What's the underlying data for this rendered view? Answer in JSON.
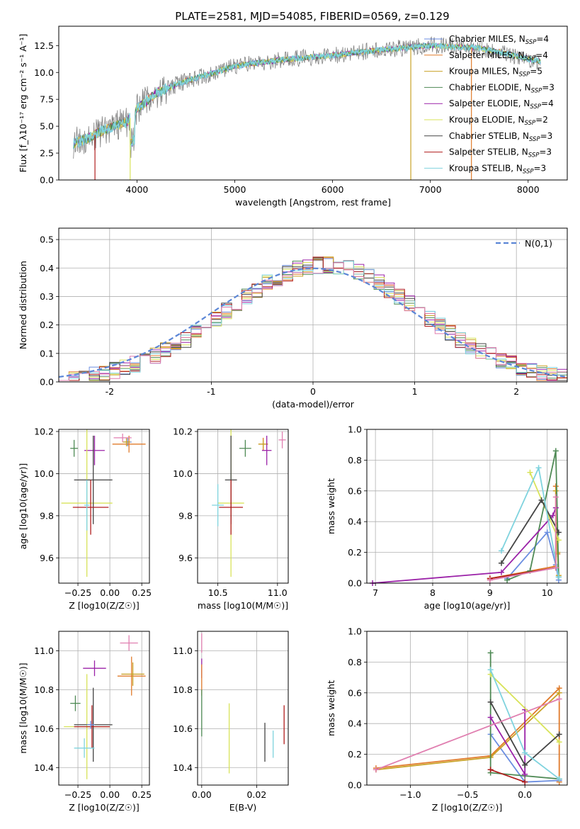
{
  "figure": {
    "title": "PLATE=2581, MJD=54085, FIBERID=0569, z=0.129"
  },
  "colors": {
    "Chabrier MILES": "#6b8ee0",
    "Salpeter MILES": "#e07b2b",
    "Kroupa MILES": "#c9a227",
    "Chabrier ELODIE": "#4f8a55",
    "Salpeter ELODIE": "#9b22a8",
    "Kroupa ELODIE": "#d8e35a",
    "Chabrier STELIB": "#444444",
    "Salpeter STELIB": "#b01c1c",
    "Kroupa STELIB": "#7fd3de",
    "extra_pink": "#e07fb0",
    "data": "#808080",
    "normal": "#5b86d6"
  },
  "chart_data": [
    {
      "id": "spectrum",
      "type": "line",
      "title": "PLATE=2581, MJD=54085, FIBERID=0569, z=0.129",
      "xlabel": "wavelength [Angstrom, rest frame]",
      "ylabel": "Flux [f_λ10⁻¹⁷ erg cm⁻² s⁻¹ A⁻¹]",
      "xlim": [
        3200,
        8400
      ],
      "ylim": [
        0,
        14.3
      ],
      "xticks": [
        4000,
        5000,
        6000,
        7000,
        8000
      ],
      "yticks": [
        0.0,
        2.5,
        5.0,
        7.5,
        10.0,
        12.5
      ],
      "legend": "top-right",
      "legend_entries": [
        "Chabrier MILES, N_SSP=4",
        "Salpeter MILES, N_SSP=4",
        "Kroupa MILES, N_SSP=5",
        "Chabrier ELODIE, N_SSP=3",
        "Salpeter ELODIE, N_SSP=4",
        "Kroupa ELODIE, N_SSP=2",
        "Chabrier STELIB, N_SSP=3",
        "Salpeter STELIB, N_SSP=3",
        "Kroupa STELIB, N_SSP=3"
      ],
      "continuum": {
        "x": [
          3350,
          3500,
          3700,
          3900,
          4000,
          4200,
          4500,
          4800,
          5000,
          5500,
          6000,
          6500,
          7000,
          7500,
          8130
        ],
        "y": [
          3.4,
          3.9,
          4.8,
          5.4,
          6.6,
          8.1,
          9.2,
          10.0,
          10.6,
          11.2,
          11.6,
          12.1,
          12.5,
          12.3,
          11.0
        ]
      },
      "grid": false
    },
    {
      "id": "residuals",
      "type": "histogram",
      "xlabel": "(data-model)/error",
      "ylabel": "Normed distribution",
      "xlim": [
        -2.5,
        2.5
      ],
      "ylim": [
        0,
        0.54
      ],
      "xticks": [
        -2,
        -1,
        0,
        1,
        2
      ],
      "yticks": [
        0.0,
        0.1,
        0.2,
        0.3,
        0.4,
        0.5
      ],
      "legend": "top-right",
      "normal_label": "N(0,1)",
      "bins": {
        "start": -2.5,
        "width": 0.1,
        "count": 50
      },
      "grid": true
    },
    {
      "id": "age_vs_Z",
      "type": "errorbar",
      "xlabel": "Z [log10(Z/Z☉)]",
      "ylabel": "age [log10(age/yr)]",
      "xlim": [
        -0.4,
        0.31
      ],
      "ylim": [
        9.48,
        10.21
      ],
      "xticks": [
        -0.25,
        0.0,
        0.25
      ],
      "xtick_labels": [
        "−0.25",
        "0.00",
        "0.25"
      ],
      "yticks": [
        9.6,
        9.8,
        10.0,
        10.2
      ],
      "ytick_labels": [
        "9.6",
        "9.8",
        "10.0",
        "10.2"
      ],
      "points": [
        {
          "c": "Chabrier MILES",
          "x": 0.14,
          "y": 10.15,
          "xe": 0.03,
          "ye": 0.02
        },
        {
          "c": "Salpeter MILES",
          "x": 0.15,
          "y": 10.14,
          "xe": 0.13,
          "ye": 0.04
        },
        {
          "c": "Kroupa MILES",
          "x": 0.13,
          "y": 10.15,
          "xe": 0.03,
          "ye": 0.02
        },
        {
          "c": "Chabrier ELODIE",
          "x": -0.28,
          "y": 10.12,
          "xe": 0.03,
          "ye": 0.04
        },
        {
          "c": "Salpeter ELODIE",
          "x": -0.12,
          "y": 10.11,
          "xe": 0.08,
          "ye": 0.07
        },
        {
          "c": "Kroupa ELODIE",
          "x": -0.18,
          "y": 9.86,
          "xe": 0.2,
          "ye": 0.35
        },
        {
          "c": "Chabrier STELIB",
          "x": -0.13,
          "y": 9.97,
          "xe": 0.15,
          "ye": 0.21
        },
        {
          "c": "Salpeter STELIB",
          "x": -0.15,
          "y": 9.84,
          "xe": 0.14,
          "ye": 0.13
        },
        {
          "c": "Kroupa STELIB",
          "x": -0.18,
          "y": 9.85,
          "xe": 0.02,
          "ye": 0.12
        },
        {
          "c": "extra_pink",
          "x": 0.1,
          "y": 10.17,
          "xe": 0.07,
          "ye": 0.02
        }
      ]
    },
    {
      "id": "age_vs_mass",
      "type": "errorbar",
      "xlabel": "mass [log10(M/M☉)]",
      "ylabel": "",
      "xlim": [
        10.33,
        11.09
      ],
      "ylim": [
        9.48,
        10.21
      ],
      "xticks": [
        10.5,
        11.0
      ],
      "xtick_labels": [
        "10.5",
        "11.0"
      ],
      "yticks": [
        9.6,
        9.8,
        10.0,
        10.2
      ],
      "ytick_labels": [
        "9.6",
        "9.8",
        "10.0",
        "10.2"
      ],
      "points": [
        {
          "c": "Salpeter MILES",
          "x": 10.88,
          "y": 10.14,
          "xe": 0.04,
          "ye": 0.03
        },
        {
          "c": "Kroupa MILES",
          "x": 10.88,
          "y": 10.14,
          "xe": 0.04,
          "ye": 0.02
        },
        {
          "c": "Chabrier ELODIE",
          "x": 10.73,
          "y": 10.12,
          "xe": 0.05,
          "ye": 0.04
        },
        {
          "c": "Salpeter ELODIE",
          "x": 10.91,
          "y": 10.11,
          "xe": 0.04,
          "ye": 0.07
        },
        {
          "c": "Kroupa ELODIE",
          "x": 10.61,
          "y": 9.86,
          "xe": 0.11,
          "ye": 0.35
        },
        {
          "c": "Chabrier STELIB",
          "x": 10.61,
          "y": 9.97,
          "xe": 0.05,
          "ye": 0.21
        },
        {
          "c": "Salpeter STELIB",
          "x": 10.61,
          "y": 9.84,
          "xe": 0.1,
          "ye": 0.13
        },
        {
          "c": "Kroupa STELIB",
          "x": 10.5,
          "y": 9.85,
          "xe": 0.05,
          "ye": 0.1
        },
        {
          "c": "extra_pink",
          "x": 11.04,
          "y": 10.16,
          "xe": 0.03,
          "ye": 0.04
        }
      ]
    },
    {
      "id": "weight_vs_age",
      "type": "line",
      "xlabel": "age [log10(age/yr)]",
      "ylabel": "mass weight",
      "xlim": [
        6.85,
        10.35
      ],
      "ylim": [
        0,
        1.0
      ],
      "xticks": [
        7,
        8,
        9,
        10
      ],
      "xtick_labels": [
        "7",
        "8",
        "9",
        "10"
      ],
      "yticks": [
        0,
        0.2,
        0.4,
        0.6,
        0.8,
        1.0
      ],
      "ytick_labels": [
        "0.0",
        "0.2",
        "0.4",
        "0.6",
        "0.8",
        "1.0"
      ],
      "series": [
        {
          "c": "Chabrier MILES",
          "x": [
            9.3,
            10.0,
            10.15,
            10.2
          ],
          "y": [
            0.03,
            0.33,
            0.12,
            0.02
          ]
        },
        {
          "c": "Salpeter MILES",
          "x": [
            9.0,
            10.15,
            10.15,
            10.18
          ],
          "y": [
            0.03,
            0.11,
            0.63,
            0.19
          ]
        },
        {
          "c": "Kroupa MILES",
          "x": [
            9.0,
            10.15,
            10.15,
            10.18,
            10.2
          ],
          "y": [
            0.03,
            0.1,
            0.6,
            0.2,
            0.05
          ]
        },
        {
          "c": "Chabrier ELODIE",
          "x": [
            9.3,
            9.7,
            10.15,
            10.2
          ],
          "y": [
            0.02,
            0.08,
            0.86,
            0.04
          ]
        },
        {
          "c": "Salpeter ELODIE",
          "x": [
            6.95,
            9.2,
            10.1,
            10.15
          ],
          "y": [
            0.0,
            0.07,
            0.44,
            0.49
          ]
        },
        {
          "c": "Kroupa ELODIE",
          "x": [
            9.7,
            10.2
          ],
          "y": [
            0.72,
            0.28
          ]
        },
        {
          "c": "Chabrier STELIB",
          "x": [
            9.2,
            9.9,
            10.2
          ],
          "y": [
            0.13,
            0.54,
            0.33
          ]
        },
        {
          "c": "Salpeter STELIB",
          "x": [
            9.0,
            10.15
          ],
          "y": [
            0.03,
            0.1
          ]
        },
        {
          "c": "Kroupa STELIB",
          "x": [
            9.2,
            9.85,
            10.2
          ],
          "y": [
            0.21,
            0.75,
            0.04
          ]
        },
        {
          "c": "extra_pink",
          "x": [
            9.0,
            10.15,
            10.15
          ],
          "y": [
            0.02,
            0.1,
            0.56
          ]
        }
      ]
    },
    {
      "id": "mass_vs_Z",
      "type": "errorbar",
      "xlabel": "Z [log10(Z/Z☉)]",
      "ylabel": "mass [log10(M/M☉)]",
      "xlim": [
        -0.4,
        0.31
      ],
      "ylim": [
        10.31,
        11.1
      ],
      "xticks": [
        -0.25,
        0.0,
        0.25
      ],
      "xtick_labels": [
        "−0.25",
        "0.00",
        "0.25"
      ],
      "yticks": [
        10.4,
        10.6,
        10.8,
        11.0
      ],
      "ytick_labels": [
        "10.4",
        "10.6",
        "10.8",
        "11.0"
      ],
      "points": [
        {
          "c": "Salpeter MILES",
          "x": 0.17,
          "y": 10.87,
          "xe": 0.11,
          "ye": 0.1
        },
        {
          "c": "Kroupa MILES",
          "x": 0.18,
          "y": 10.88,
          "xe": 0.09,
          "ye": 0.06
        },
        {
          "c": "Chabrier ELODIE",
          "x": -0.27,
          "y": 10.73,
          "xe": 0.04,
          "ye": 0.04
        },
        {
          "c": "Salpeter ELODIE",
          "x": -0.12,
          "y": 10.91,
          "xe": 0.09,
          "ye": 0.04
        },
        {
          "c": "Kroupa ELODIE",
          "x": -0.18,
          "y": 10.61,
          "xe": 0.18,
          "ye": 0.27
        },
        {
          "c": "Chabrier STELIB",
          "x": -0.13,
          "y": 10.62,
          "xe": 0.15,
          "ye": 0.19
        },
        {
          "c": "Salpeter STELIB",
          "x": -0.14,
          "y": 10.61,
          "xe": 0.14,
          "ye": 0.11
        },
        {
          "c": "Kroupa STELIB",
          "x": -0.2,
          "y": 10.5,
          "xe": 0.08,
          "ye": 0.05
        },
        {
          "c": "Chabrier MILES",
          "x": -0.15,
          "y": 10.62,
          "xe": 0.03,
          "ye": 0.02
        },
        {
          "c": "extra_pink",
          "x": 0.15,
          "y": 11.04,
          "xe": 0.07,
          "ye": 0.04
        }
      ]
    },
    {
      "id": "mass_vs_EBV",
      "type": "errorbar",
      "xlabel": "E(B-V)",
      "ylabel": "",
      "xlim": [
        -0.0015,
        0.0315
      ],
      "ylim": [
        10.31,
        11.1
      ],
      "xticks": [
        0.0,
        0.02
      ],
      "xtick_labels": [
        "0.00",
        "0.02"
      ],
      "yticks": [
        10.4,
        10.6,
        10.8,
        11.0
      ],
      "ytick_labels": [
        "10.4",
        "10.6",
        "10.8",
        "11.0"
      ],
      "points": [
        {
          "c": "extra_pink",
          "x": 0.0,
          "y": 11.04,
          "xe": 0,
          "ye": 0.05
        },
        {
          "c": "Salpeter ELODIE",
          "x": 0.0,
          "y": 10.91,
          "xe": 0,
          "ye": 0.05
        },
        {
          "c": "Salpeter MILES",
          "x": 0.0,
          "y": 10.85,
          "xe": 0,
          "ye": 0.08
        },
        {
          "c": "Chabrier ELODIE",
          "x": 0.0,
          "y": 10.68,
          "xe": 0,
          "ye": 0.12
        },
        {
          "c": "Kroupa ELODIE",
          "x": 0.01,
          "y": 10.55,
          "xe": 0,
          "ye": 0.18
        },
        {
          "c": "Chabrier STELIB",
          "x": 0.023,
          "y": 10.53,
          "xe": 0,
          "ye": 0.1
        },
        {
          "c": "Kroupa STELIB",
          "x": 0.026,
          "y": 10.52,
          "xe": 0,
          "ye": 0.07
        },
        {
          "c": "Salpeter STELIB",
          "x": 0.03,
          "y": 10.62,
          "xe": 0,
          "ye": 0.1
        }
      ]
    },
    {
      "id": "weight_vs_Z",
      "type": "line",
      "xlabel": "Z [log10(Z/Z☉)]",
      "ylabel": "mass weight",
      "xlim": [
        -1.38,
        0.37
      ],
      "ylim": [
        0,
        1.0
      ],
      "xticks": [
        -1.0,
        -0.5,
        0.0
      ],
      "xtick_labels": [
        "−1.0",
        "−0.5",
        "0.0"
      ],
      "yticks": [
        0,
        0.2,
        0.4,
        0.6,
        0.8,
        1.0
      ],
      "ytick_labels": [
        "0.0",
        "0.2",
        "0.4",
        "0.6",
        "0.8",
        "1.0"
      ],
      "series": [
        {
          "c": "Chabrier MILES",
          "x": [
            -0.3,
            0.0,
            0.3
          ],
          "y": [
            0.33,
            0.02,
            0.03
          ]
        },
        {
          "c": "Salpeter MILES",
          "x": [
            -1.3,
            -0.3,
            0.3,
            0.3
          ],
          "y": [
            0.11,
            0.19,
            0.63,
            0.02
          ]
        },
        {
          "c": "Kroupa MILES",
          "x": [
            -1.3,
            -0.3,
            0.3
          ],
          "y": [
            0.1,
            0.18,
            0.6
          ]
        },
        {
          "c": "Chabrier ELODIE",
          "x": [
            -0.3,
            -0.3,
            0.0,
            0.3
          ],
          "y": [
            0.86,
            0.08,
            0.06,
            0.04
          ]
        },
        {
          "c": "Salpeter ELODIE",
          "x": [
            -0.3,
            0.0,
            0.0
          ],
          "y": [
            0.44,
            0.07,
            0.49
          ]
        },
        {
          "c": "Kroupa ELODIE",
          "x": [
            -0.3,
            0.3
          ],
          "y": [
            0.72,
            0.28
          ]
        },
        {
          "c": "Chabrier STELIB",
          "x": [
            -0.3,
            0.0,
            0.3
          ],
          "y": [
            0.54,
            0.13,
            0.33
          ]
        },
        {
          "c": "Salpeter STELIB",
          "x": [
            -0.3,
            0.0
          ],
          "y": [
            0.1,
            0.02
          ]
        },
        {
          "c": "Kroupa STELIB",
          "x": [
            -0.3,
            0.0,
            0.3
          ],
          "y": [
            0.75,
            0.21,
            0.04
          ]
        },
        {
          "c": "extra_pink",
          "x": [
            -1.3,
            0.3
          ],
          "y": [
            0.1,
            0.56
          ]
        }
      ]
    }
  ]
}
